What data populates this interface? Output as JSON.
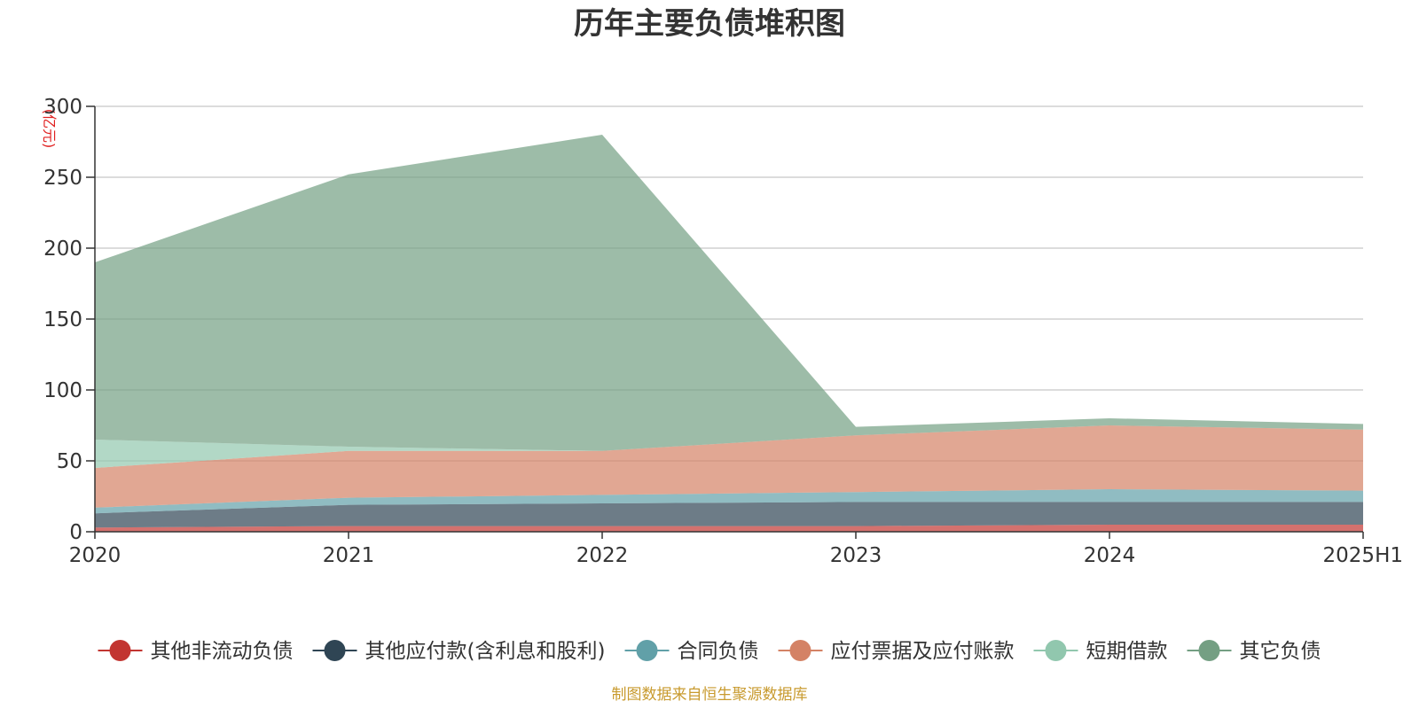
{
  "chart_data": {
    "type": "area",
    "stacked": true,
    "title": "历年主要负债堆积图",
    "unit_label": "(亿元)",
    "categories": [
      "2020",
      "2021",
      "2022",
      "2023",
      "2024",
      "2025H1"
    ],
    "ylim": [
      0,
      300
    ],
    "yticks": [
      0,
      50,
      100,
      150,
      200,
      250,
      300
    ],
    "grid": true,
    "legend_position": "bottom",
    "series": [
      {
        "name": "其他非流动负债",
        "color": "#c23531",
        "values": [
          3,
          4,
          4,
          4,
          5,
          5
        ]
      },
      {
        "name": "其他应付款(含利息和股利)",
        "color": "#2f4554",
        "values": [
          10,
          15,
          16,
          17,
          16,
          16
        ]
      },
      {
        "name": "合同负债",
        "color": "#61a0a8",
        "values": [
          4,
          5,
          6,
          7,
          9,
          8
        ]
      },
      {
        "name": "应付票据及应付账款",
        "color": "#d48265",
        "values": [
          28,
          33,
          31,
          40,
          45,
          43
        ]
      },
      {
        "name": "短期借款",
        "color": "#91c7ae",
        "values": [
          20,
          3,
          0,
          0,
          0,
          0
        ]
      },
      {
        "name": "其它负债",
        "color": "#749f83",
        "values": [
          125,
          192,
          223,
          6,
          5,
          4
        ]
      }
    ],
    "source": "制图数据来自恒生聚源数据库"
  }
}
